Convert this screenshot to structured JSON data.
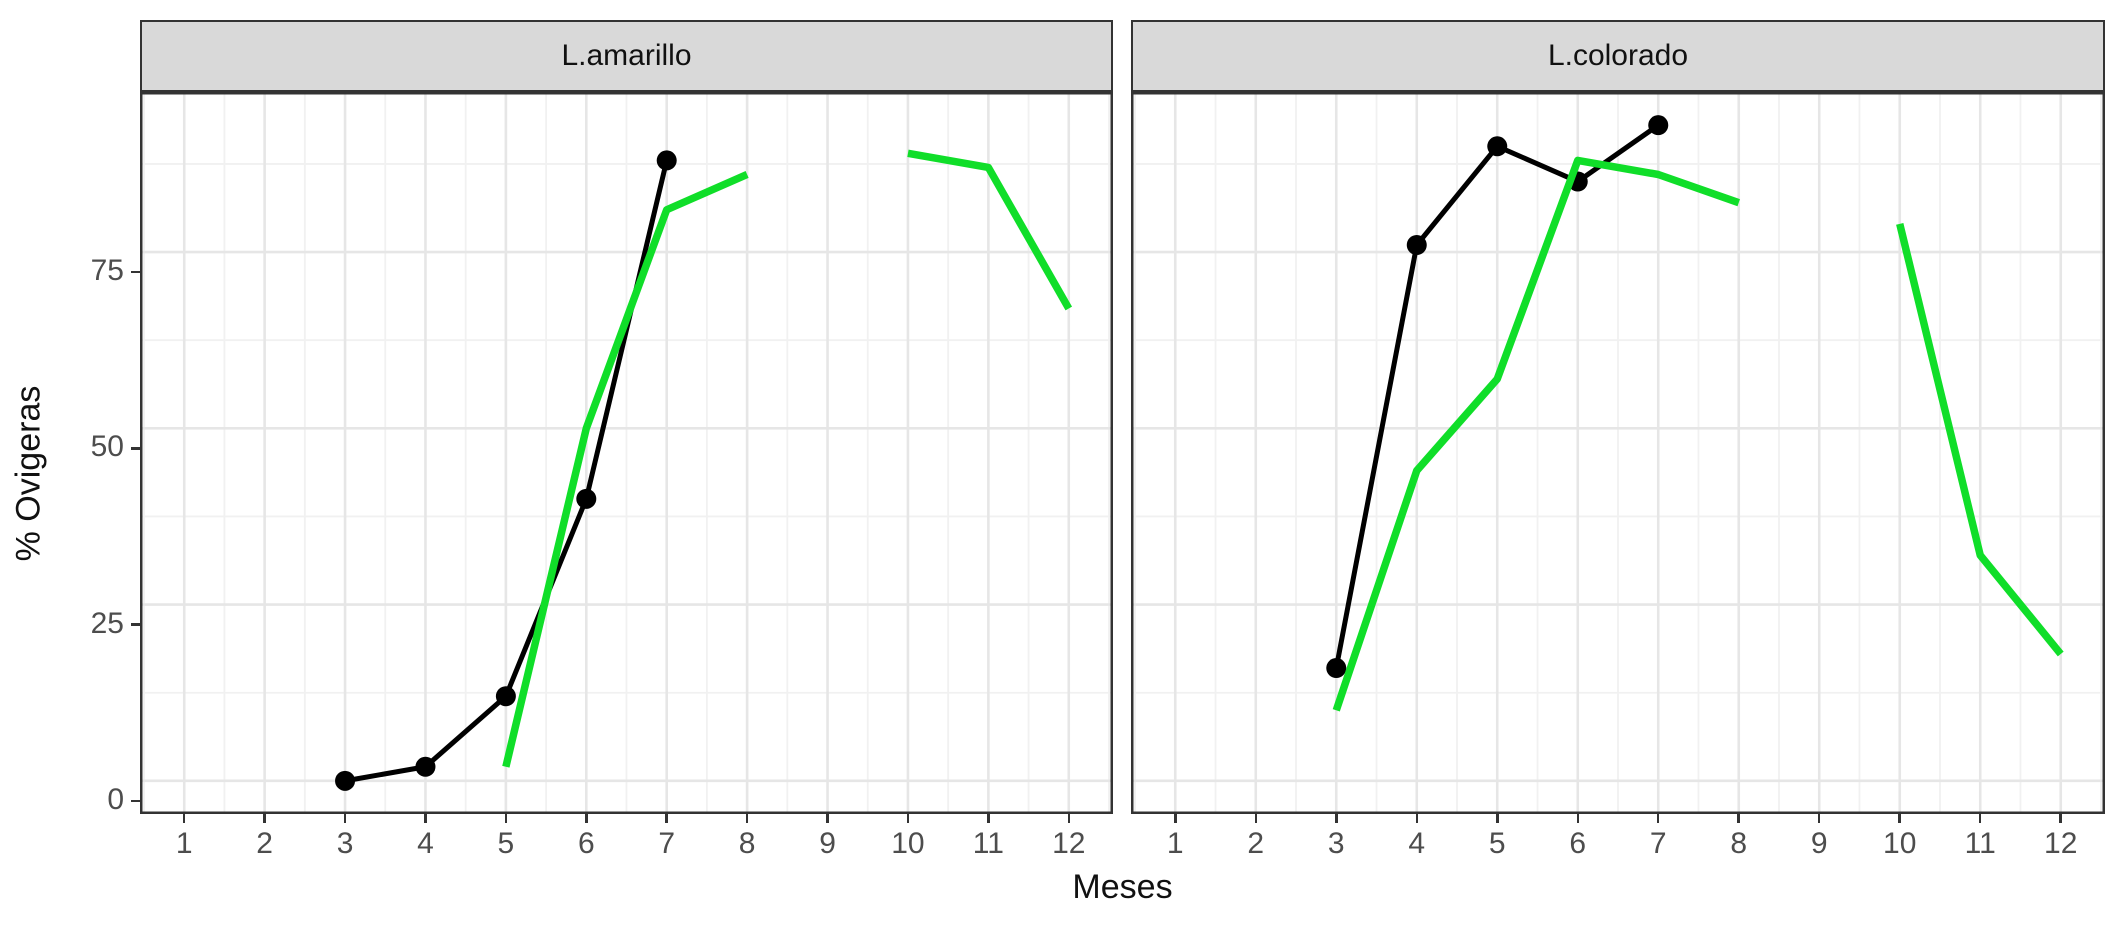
{
  "chart_data": {
    "type": "line",
    "title": "",
    "xlabel": "Meses",
    "ylabel": "% Ovigeras",
    "x_tick_labels": [
      "1",
      "2",
      "3",
      "4",
      "5",
      "6",
      "7",
      "8",
      "9",
      "10",
      "11",
      "12"
    ],
    "x_tick_values": [
      1,
      2,
      3,
      4,
      5,
      6,
      7,
      8,
      9,
      10,
      11,
      12
    ],
    "y_tick_labels": [
      "0",
      "25",
      "50",
      "75"
    ],
    "y_tick_values": [
      0,
      25,
      50,
      75
    ],
    "xlim": [
      0.45,
      12.55
    ],
    "ylim": [
      -4.7,
      97.7
    ],
    "grid": {
      "major_x": [
        1,
        2,
        3,
        4,
        5,
        6,
        7,
        8,
        9,
        10,
        11,
        12
      ],
      "minor_x": [
        0.5,
        1.5,
        2.5,
        3.5,
        4.5,
        5.5,
        6.5,
        7.5,
        8.5,
        9.5,
        10.5,
        11.5,
        12.5
      ],
      "major_y": [
        0,
        25,
        50,
        75
      ],
      "minor_y": [
        12.5,
        37.5,
        62.5,
        87.5
      ]
    },
    "legend": "none",
    "facets": [
      {
        "label": "L.amarillo",
        "series": [
          {
            "name": "black-points-line",
            "color_key": "black",
            "marker": true,
            "segments": [
              {
                "x": [
                  3,
                  4,
                  5,
                  6,
                  7
                ],
                "y": [
                  0,
                  2,
                  12,
                  40,
                  88
                ]
              }
            ]
          },
          {
            "name": "green-line",
            "color_key": "green",
            "marker": false,
            "segments": [
              {
                "x": [
                  5,
                  6,
                  7,
                  8
                ],
                "y": [
                  2,
                  50,
                  81,
                  86
                ]
              },
              {
                "x": [
                  10,
                  11,
                  12
                ],
                "y": [
                  89,
                  87,
                  67
                ]
              }
            ]
          }
        ]
      },
      {
        "label": "L.colorado",
        "series": [
          {
            "name": "black-points-line",
            "color_key": "black",
            "marker": true,
            "segments": [
              {
                "x": [
                  3,
                  4,
                  5,
                  6,
                  7
                ],
                "y": [
                  16,
                  76,
                  90,
                  85,
                  93
                ]
              }
            ]
          },
          {
            "name": "green-line",
            "color_key": "green",
            "marker": false,
            "segments": [
              {
                "x": [
                  3,
                  4,
                  5,
                  6,
                  7,
                  8
                ],
                "y": [
                  10,
                  44,
                  57,
                  88,
                  86,
                  82
                ]
              },
              {
                "x": [
                  10,
                  11,
                  12
                ],
                "y": [
                  79,
                  32,
                  18
                ]
              }
            ]
          }
        ]
      }
    ]
  },
  "style": {
    "green": "#10DE29",
    "black": "#000000",
    "strip_bg": "#D9D9D9",
    "panel_border": "#333333",
    "grid_major": "#E6E6E6",
    "grid_minor": "#F1F1F1",
    "axis_text": "#4D4D4D"
  }
}
